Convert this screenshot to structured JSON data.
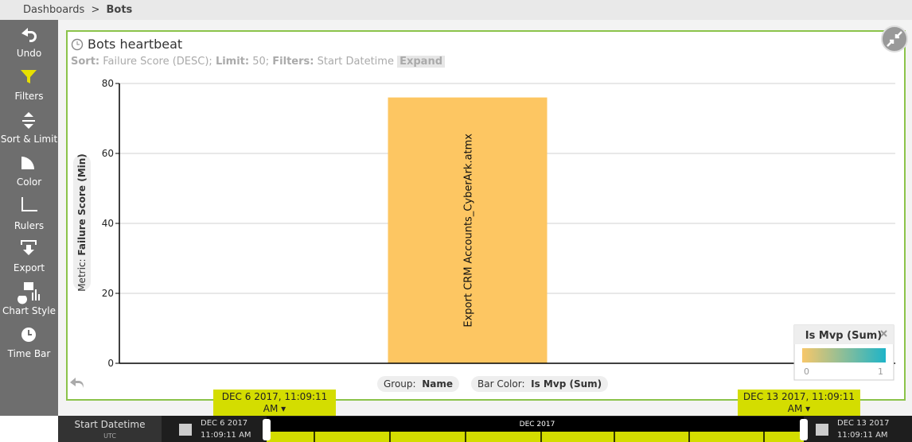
{
  "breadcrumb": {
    "root": "Dashboards",
    "separator": ">",
    "current": "Bots"
  },
  "sidebar": [
    "Undo",
    "Filters",
    "Sort & Limit",
    "Color",
    "Rulers",
    "Export",
    "Chart Style",
    "Time Bar"
  ],
  "panel": {
    "title": "Bots heartbeat",
    "sort_label": "Sort:",
    "sort": "Failure Score (DESC);",
    "limit_label": "Limit:",
    "limit": "50;",
    "filters_label": "Filters:",
    "filters": "Start Datetime",
    "expand": "Expand",
    "group_label": "Group:",
    "group": "Name",
    "bar_color_label": "Bar Color:",
    "bar_color": "Is Mvp (Sum)"
  },
  "chart_data": {
    "type": "bar",
    "categories": [
      "Export CRM Accounts_CyberArk.atmx"
    ],
    "values": [
      76
    ],
    "color": "#fdc662",
    "ylim": [
      0,
      80
    ],
    "yticks": [
      0,
      20,
      40,
      60,
      80
    ],
    "grid": true,
    "y_label_prefix": "Metric:",
    "y_label": "Failure Score (Min)",
    "legend": {
      "title": "Is Mvp (Sum)",
      "colors": [
        "#f7c76a",
        "#1eb4c8"
      ],
      "ticks": [
        0,
        1
      ]
    }
  },
  "time_bar": {
    "field": "Start Datetime",
    "timezone": "UTC",
    "start_tag": "DEC 6 2017, 11:09:11 AM",
    "end_tag": "DEC 13 2017, 11:09:11 AM",
    "start_date": "DEC 6 2017",
    "start_time": "11:09:11 AM",
    "end_date": "DEC 13 2017",
    "end_time": "11:09:11 AM",
    "month": "DEC 2017"
  }
}
